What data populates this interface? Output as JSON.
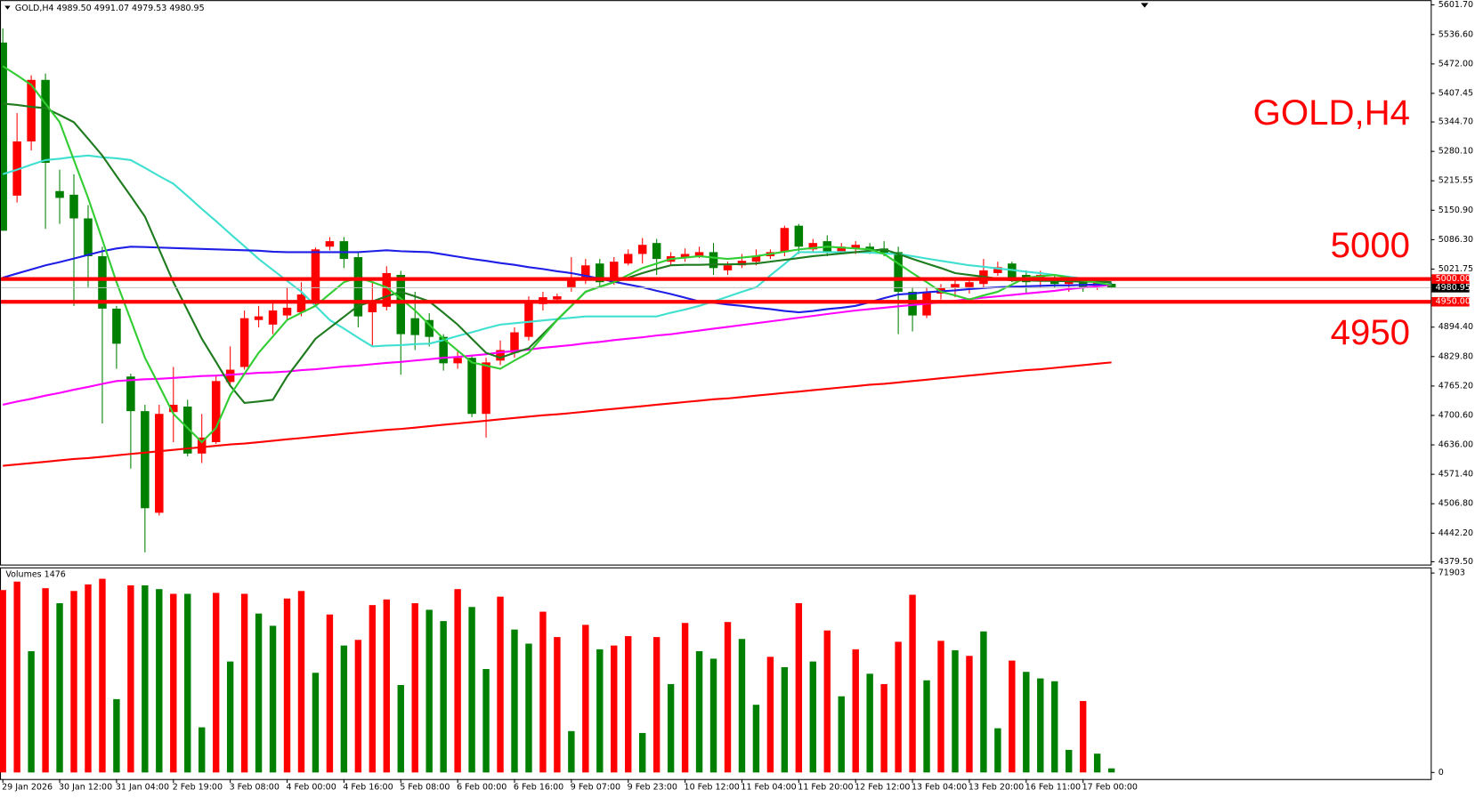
{
  "header": {
    "symbol": "GOLD,H4",
    "quote": "4989.50 4991.07 4979.53 4980.95"
  },
  "annotations": [
    "GOLD,H4",
    "5000",
    "4950"
  ],
  "chart_data": [
    {
      "type": "candlestick",
      "categories": [
        "29 Jan 2026",
        null,
        null,
        null,
        "30 Jan 12:00",
        null,
        null,
        null,
        "31 Jan 04:00",
        null,
        null,
        null,
        "2 Feb 19:00",
        null,
        null,
        null,
        "3 Feb 08:00",
        null,
        null,
        null,
        "4 Feb 00:00",
        null,
        null,
        null,
        "4 Feb 16:00",
        null,
        null,
        null,
        "5 Feb 08:00",
        null,
        null,
        null,
        "6 Feb 00:00",
        null,
        null,
        null,
        "6 Feb 16:00",
        null,
        null,
        null,
        "9 Feb 07:00",
        null,
        null,
        null,
        "9 Feb 23:00",
        null,
        null,
        null,
        "10 Feb 12:00",
        null,
        null,
        null,
        "11 Feb 04:00",
        null,
        null,
        null,
        "11 Feb 20:00",
        null,
        null,
        null,
        "12 Feb 12:00",
        null,
        null,
        null,
        "13 Feb 04:00",
        null,
        null,
        null,
        "13 Feb 20:00",
        null,
        null,
        null,
        "16 Feb 11:00",
        null,
        null,
        null,
        "17 Feb 00:00",
        null,
        null
      ],
      "open": [
        5519,
        5183,
        5302,
        5437,
        5193,
        5185,
        5133,
        5050,
        4935,
        4786,
        4710,
        4487,
        4708,
        4720,
        4617,
        4642,
        4774,
        4807,
        4910,
        4900,
        4920,
        4927,
        4951,
        5071,
        5083,
        5048,
        4927,
        4939,
        5009,
        4914,
        4910,
        4873,
        4815,
        4827,
        4704,
        4821,
        4838,
        4873,
        4945,
        4955,
        4982,
        4997,
        5034,
        4993,
        5034,
        5055,
        5079,
        5038,
        5046,
        5050,
        5059,
        5019,
        5030,
        5038,
        5050,
        5059,
        5117,
        5065,
        5083,
        5061,
        5067,
        5071,
        5067,
        5059,
        4972,
        4920,
        4968,
        4980,
        4982,
        4989,
        5013,
        5034,
        5009,
        4997,
        5001,
        4989,
        4993,
        4984,
        4989.5
      ],
      "high": [
        5550,
        5364,
        5447,
        5451,
        5240,
        5230,
        5162,
        5071,
        4941,
        4792,
        4724,
        4724,
        4807,
        4735,
        4704,
        4790,
        4852,
        4931,
        4941,
        4951,
        4982,
        4993,
        5069,
        5092,
        5092,
        5059,
        4993,
        5028,
        5018,
        4972,
        4925,
        4879,
        4844,
        4834,
        4827,
        4865,
        4894,
        4962,
        4972,
        4968,
        5048,
        5044,
        5044,
        5048,
        5065,
        5090,
        5088,
        5059,
        5067,
        5071,
        5079,
        5038,
        5055,
        5065,
        5065,
        5117,
        5121,
        5088,
        5096,
        5079,
        5083,
        5079,
        5083,
        5071,
        4982,
        4982,
        4989,
        5001,
        5003,
        5044,
        5038,
        5038,
        5019,
        5018,
        5009,
        5005,
        5001,
        4999,
        4991.07
      ],
      "low": [
        5106,
        5168,
        5282,
        5110,
        5121,
        4941,
        4982,
        4683,
        4803,
        4584,
        4400,
        4481,
        4642,
        4611,
        4596,
        4638,
        4766,
        4801,
        4894,
        4879,
        4910,
        4918,
        4941,
        5063,
        5024,
        4894,
        4852,
        4931,
        4790,
        4844,
        4852,
        4799,
        4803,
        4697,
        4652,
        4811,
        4827,
        4865,
        4931,
        4947,
        4972,
        4989,
        4982,
        4987,
        5030,
        5034,
        5009,
        5030,
        5038,
        5046,
        5009,
        5009,
        5024,
        5030,
        5044,
        5050,
        5055,
        5059,
        5050,
        5055,
        5055,
        5055,
        5050,
        4879,
        4885,
        4914,
        4955,
        4960,
        4968,
        4982,
        5007,
        4993,
        4968,
        4982,
        4980,
        4972,
        4972,
        4976,
        4979.53
      ],
      "close": [
        5106,
        5302,
        5437,
        5255,
        5178,
        5133,
        5050,
        4935,
        4858,
        4710,
        4497,
        4704,
        4724,
        4617,
        4652,
        4776,
        4801,
        4914,
        4918,
        4931,
        4937,
        4966,
        5065,
        5083,
        5044,
        4918,
        4951,
        5013,
        4879,
        4877,
        4873,
        4815,
        4827,
        4704,
        4817,
        4844,
        4883,
        4951,
        4960,
        4962,
        5001,
        5030,
        4993,
        5038,
        5055,
        5075,
        5044,
        5050,
        5055,
        5059,
        5024,
        5030,
        5040,
        5050,
        5059,
        5112,
        5071,
        5079,
        5059,
        5071,
        5075,
        5063,
        5055,
        4972,
        4920,
        4972,
        4980,
        4989,
        4993,
        5019,
        5026,
        5003,
        4993,
        5009,
        4989,
        4997,
        4982,
        4993,
        4980.95
      ],
      "up_color": "#ff0000",
      "down_color": "#008000",
      "lines": [
        {
          "color": "#ff0000",
          "values": [
            4590,
            4593,
            4596,
            4599,
            4602,
            4605,
            4607,
            4610,
            4613,
            4616,
            4619,
            4622,
            4625,
            4628,
            4631,
            4634,
            4637,
            4639,
            4642,
            4645,
            4648,
            4651,
            4654,
            4657,
            4660,
            4663,
            4666,
            4669,
            4671,
            4674,
            4677,
            4680,
            4683,
            4686,
            4689,
            4692,
            4695,
            4698,
            4701,
            4703,
            4706,
            4709,
            4712,
            4715,
            4718,
            4721,
            4724,
            4727,
            4730,
            4733,
            4736,
            4738,
            4741,
            4744,
            4747,
            4750,
            4753,
            4756,
            4759,
            4762,
            4765,
            4768,
            4770,
            4773,
            4776,
            4779,
            4782,
            4785,
            4788,
            4791,
            4794,
            4797,
            4800,
            4802,
            4805,
            4808,
            4811,
            4814,
            4817
          ]
        },
        {
          "color": "#ff00ff",
          "values": [
            4724,
            4731,
            4737,
            4744,
            4750,
            4757,
            4763,
            4770,
            4776,
            4778,
            4780,
            4781,
            4783,
            4785,
            4787,
            4788,
            4790,
            4792,
            4794,
            4795,
            4797,
            4800,
            4802,
            4805,
            4808,
            4810,
            4813,
            4816,
            4818,
            4821,
            4824,
            4827,
            4829,
            4832,
            4835,
            4839,
            4842,
            4845,
            4849,
            4852,
            4855,
            4859,
            4862,
            4866,
            4869,
            4872,
            4876,
            4879,
            4883,
            4887,
            4891,
            4895,
            4899,
            4903,
            4907,
            4911,
            4915,
            4919,
            4923,
            4927,
            4931,
            4934,
            4937,
            4940,
            4943,
            4946,
            4949,
            4952,
            4956,
            4959,
            4962,
            4965,
            4968,
            4971,
            4974,
            4978,
            4981,
            4984,
            4987
          ]
        },
        {
          "color": "#40e0d0",
          "values": [
            5230,
            5240,
            5251,
            5261,
            5264,
            5268,
            5271,
            5267,
            5265,
            5261,
            5244,
            5226,
            5209,
            5182,
            5154,
            5127,
            5099,
            5072,
            5044,
            5020,
            4996,
            4972,
            4941,
            4910,
            4891,
            4871,
            4852,
            4854,
            4855,
            4857,
            4858,
            4866,
            4875,
            4883,
            4892,
            4900,
            4903,
            4906,
            4909,
            4912,
            4915,
            4918,
            4918,
            4918,
            4918,
            4918,
            4918,
            4926,
            4933,
            4941,
            4951,
            4961,
            4972,
            4982,
            5008,
            5033,
            5059,
            5059,
            5059,
            5059,
            5059,
            5058,
            5056,
            5055,
            5050,
            5045,
            5040,
            5035,
            5030,
            5027,
            5023,
            5020,
            5016,
            5013,
            5009,
            5005,
            5001,
            4997,
            4993
          ]
        },
        {
          "color": "#1e1ee6",
          "values": [
            5003,
            5012,
            5021,
            5030,
            5037,
            5045,
            5053,
            5061,
            5067,
            5071,
            5070,
            5069,
            5068,
            5067,
            5066,
            5065,
            5064,
            5063,
            5062,
            5060,
            5059,
            5059,
            5059,
            5059,
            5059,
            5059,
            5061,
            5063,
            5061,
            5060,
            5059,
            5054,
            5049,
            5044,
            5040,
            5035,
            5031,
            5026,
            5022,
            5017,
            5013,
            5007,
            5001,
            4994,
            4988,
            4982,
            4974,
            4967,
            4959,
            4951,
            4948,
            4944,
            4941,
            4937,
            4934,
            4930,
            4927,
            4930,
            4934,
            4937,
            4941,
            4949,
            4958,
            4966,
            4968,
            4971,
            4973,
            4975,
            4978,
            4980,
            4982,
            4983,
            4984,
            4985,
            4986,
            4986,
            4987,
            4988,
            4989
          ]
        },
        {
          "color": "#1e7b1e",
          "values": [
            5385,
            5382,
            5378,
            5375,
            5360,
            5344,
            5308,
            5271,
            5226,
            5182,
            5137,
            5065,
            4993,
            4931,
            4869,
            4818,
            4766,
            4728,
            4731,
            4735,
            4786,
            4827,
            4869,
            4893,
            4917,
            4941,
            4951,
            4962,
            4972,
            4962,
            4951,
            4926,
            4900,
            4869,
            4838,
            4827,
            4838,
            4848,
            4879,
            4910,
            4941,
            4972,
            4983,
            4993,
            5003,
            5013,
            5022,
            5030,
            5031,
            5031,
            5032,
            5032,
            5033,
            5034,
            5038,
            5042,
            5046,
            5050,
            5053,
            5056,
            5059,
            5062,
            5065,
            5055,
            5044,
            5034,
            5024,
            5013,
            5009,
            5005,
            5001,
            4997,
            4997,
            4996,
            4996,
            4995,
            4994,
            4994,
            4993
          ]
        },
        {
          "color": "#32cd32",
          "values": [
            5467,
            5447,
            5426,
            5385,
            5344,
            5261,
            5178,
            5086,
            4993,
            4910,
            4827,
            4766,
            4704,
            4673,
            4642,
            4673,
            4745,
            4792,
            4838,
            4874,
            4910,
            4926,
            4941,
            4967,
            4993,
            5003,
            4993,
            4982,
            4957,
            4931,
            4900,
            4869,
            4843,
            4817,
            4810,
            4803,
            4821,
            4838,
            4874,
            4910,
            4941,
            4972,
            4983,
            4993,
            5009,
            5024,
            5034,
            5044,
            5047,
            5050,
            5047,
            5044,
            5047,
            5050,
            5055,
            5060,
            5065,
            5068,
            5071,
            5069,
            5067,
            5065,
            5055,
            5034,
            5013,
            4993,
            4972,
            4964,
            4955,
            4964,
            4972,
            4988,
            5003,
            5006,
            5009,
            5003,
            4997,
            4992,
            4987
          ]
        }
      ],
      "levels": [
        {
          "value": 5000,
          "label": "5000.00"
        },
        {
          "value": 4950,
          "label": "4950.00"
        }
      ],
      "level_color": "#ff0000",
      "bid": {
        "value": 4980.95,
        "label": "4980.95"
      },
      "bid_color": "#c0c0c0",
      "ylim": [
        4379.5,
        5601.7
      ],
      "yticks": [
        {
          "value": 5601.7,
          "label": "5601.70"
        },
        {
          "value": 5536.6,
          "label": "5536.60"
        },
        {
          "value": 5472,
          "label": "5472.00"
        },
        {
          "value": 5407.45,
          "label": "5407.45"
        },
        {
          "value": 5344.7,
          "label": "5344.70"
        },
        {
          "value": 5280.1,
          "label": "5280.10"
        },
        {
          "value": 5215.55,
          "label": "5215.55"
        },
        {
          "value": 5150.9,
          "label": "5150.90"
        },
        {
          "value": 5086.3,
          "label": "5086.30"
        },
        {
          "value": 5021.75,
          "label": "5021.75"
        },
        {
          "value": 4894.4,
          "label": "4894.40"
        },
        {
          "value": 4829.8,
          "label": "4829.80"
        },
        {
          "value": 4765.2,
          "label": "4765.20"
        },
        {
          "value": 4700.6,
          "label": "4700.60"
        },
        {
          "value": 4636,
          "label": "4636.00"
        },
        {
          "value": 4571.4,
          "label": "4571.40"
        },
        {
          "value": 4506.8,
          "label": "4506.80"
        },
        {
          "value": 4442.2,
          "label": "4442.20"
        },
        {
          "value": 4379.5,
          "label": "4379.50"
        }
      ]
    },
    {
      "type": "bar",
      "title": "Volumes 1476",
      "values": [
        65766,
        68817,
        43731,
        66444,
        61020,
        65427,
        67800,
        69834,
        26442,
        67461,
        67461,
        66105,
        64410,
        64410,
        16272,
        64749,
        40002,
        64410,
        57291,
        52884,
        62715,
        65427,
        35934,
        56952,
        45765,
        47799,
        60342,
        62376,
        31527,
        61020,
        58647,
        54579,
        66105,
        59664,
        37290,
        63393,
        51528,
        46443,
        57969,
        48816,
        14916,
        53223,
        44409,
        45765,
        49155,
        14238,
        48816,
        31866,
        53901,
        43731,
        41019,
        54240,
        48138,
        24408,
        41697,
        37968,
        61020,
        40002,
        51189,
        27459,
        44409,
        35595,
        31866,
        47121,
        64071,
        33222,
        47460,
        44070,
        42036,
        50850,
        15933,
        40341,
        36273,
        33900,
        32883,
        8136,
        25764,
        6780,
        1476
      ],
      "colors": [
        "#ff0000",
        "#ff0000",
        "#008000",
        "#ff0000",
        "#008000",
        "#ff0000",
        "#ff0000",
        "#ff0000",
        "#008000",
        "#ff0000",
        "#008000",
        "#008000",
        "#ff0000",
        "#008000",
        "#008000",
        "#ff0000",
        "#008000",
        "#ff0000",
        "#008000",
        "#008000",
        "#ff0000",
        "#ff0000",
        "#008000",
        "#ff0000",
        "#008000",
        "#ff0000",
        "#ff0000",
        "#ff0000",
        "#008000",
        "#ff0000",
        "#008000",
        "#008000",
        "#ff0000",
        "#008000",
        "#008000",
        "#ff0000",
        "#008000",
        "#008000",
        "#ff0000",
        "#ff0000",
        "#008000",
        "#ff0000",
        "#008000",
        "#ff0000",
        "#ff0000",
        "#008000",
        "#ff0000",
        "#008000",
        "#ff0000",
        "#008000",
        "#008000",
        "#ff0000",
        "#008000",
        "#008000",
        "#ff0000",
        "#008000",
        "#ff0000",
        "#008000",
        "#ff0000",
        "#008000",
        "#ff0000",
        "#008000",
        "#ff0000",
        "#ff0000",
        "#ff0000",
        "#008000",
        "#ff0000",
        "#008000",
        "#ff0000",
        "#008000",
        "#008000",
        "#ff0000",
        "#008000",
        "#008000",
        "#008000",
        "#008000",
        "#ff0000",
        "#008000",
        "#008000"
      ],
      "ylim": [
        0,
        71903
      ],
      "yticks": [
        0,
        71903
      ]
    }
  ]
}
